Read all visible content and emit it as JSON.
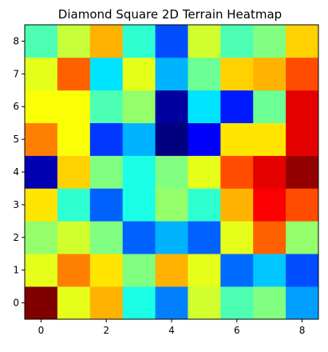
{
  "chart_data": {
    "type": "heatmap",
    "title": "Diamond Square 2D Terrain Heatmap",
    "xlabel": "",
    "ylabel": "",
    "colormap": "jet",
    "x_ticks": [
      "0",
      "2",
      "4",
      "6",
      "8"
    ],
    "y_ticks": [
      "0",
      "1",
      "2",
      "3",
      "4",
      "5",
      "6",
      "7",
      "8"
    ],
    "x_range": [
      -0.5,
      8.5
    ],
    "y_range": [
      -0.5,
      8.5
    ],
    "origin": "lower",
    "grid": false,
    "legend": "none",
    "value_range": [
      0,
      1
    ],
    "rows": [
      [
        1.0,
        0.6,
        0.7,
        0.4,
        0.25,
        0.58,
        0.45,
        0.5,
        0.28
      ],
      [
        0.6,
        0.75,
        0.65,
        0.5,
        0.7,
        0.6,
        0.23,
        0.32,
        0.2
      ],
      [
        0.52,
        0.58,
        0.5,
        0.22,
        0.3,
        0.22,
        0.6,
        0.78,
        0.52
      ],
      [
        0.65,
        0.42,
        0.22,
        0.4,
        0.52,
        0.42,
        0.7,
        0.88,
        0.8
      ],
      [
        0.05,
        0.67,
        0.5,
        0.4,
        0.5,
        0.6,
        0.8,
        0.9,
        0.98
      ],
      [
        0.75,
        0.62,
        0.18,
        0.3,
        0.0,
        0.12,
        0.65,
        0.65,
        0.9
      ],
      [
        0.62,
        0.62,
        0.45,
        0.52,
        0.03,
        0.35,
        0.15,
        0.48,
        0.9
      ],
      [
        0.6,
        0.78,
        0.35,
        0.6,
        0.3,
        0.48,
        0.67,
        0.7,
        0.8
      ],
      [
        0.45,
        0.57,
        0.7,
        0.42,
        0.2,
        0.58,
        0.45,
        0.5,
        0.67
      ]
    ]
  }
}
